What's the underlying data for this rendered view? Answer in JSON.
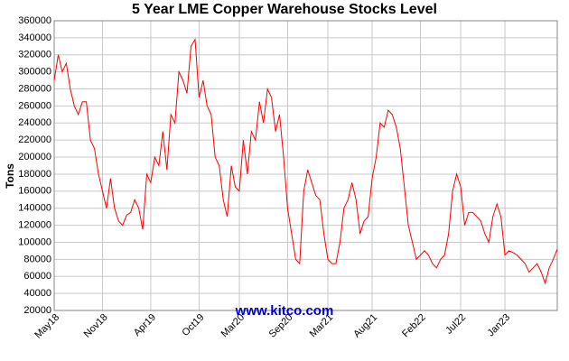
{
  "chart_data": {
    "type": "line",
    "title": "5 Year LME Copper Warehouse Stocks Level",
    "y_label": "Tons",
    "annotation": "www.kitco.com",
    "color": "#ff0000",
    "grid": true,
    "ylim": [
      20000,
      360000
    ],
    "yticks": [
      20000,
      40000,
      60000,
      80000,
      100000,
      120000,
      140000,
      160000,
      180000,
      200000,
      220000,
      240000,
      260000,
      280000,
      300000,
      320000,
      340000,
      360000
    ],
    "categories": [
      "May18",
      null,
      null,
      null,
      null,
      null,
      null,
      null,
      null,
      null,
      null,
      null,
      "Nov18",
      null,
      null,
      null,
      null,
      null,
      null,
      null,
      null,
      null,
      null,
      null,
      "Apr19",
      null,
      null,
      null,
      null,
      null,
      null,
      null,
      null,
      null,
      null,
      null,
      "Oct19",
      null,
      null,
      null,
      null,
      null,
      null,
      null,
      null,
      null,
      "Mar20",
      null,
      null,
      null,
      null,
      null,
      null,
      null,
      null,
      null,
      null,
      null,
      "Sep20",
      null,
      null,
      null,
      null,
      null,
      null,
      null,
      null,
      null,
      "Mar21",
      null,
      null,
      null,
      null,
      null,
      null,
      null,
      null,
      null,
      null,
      "Aug21",
      null,
      null,
      null,
      null,
      null,
      null,
      null,
      null,
      null,
      null,
      null,
      "Feb22",
      null,
      null,
      null,
      null,
      null,
      null,
      null,
      null,
      null,
      "Jul22",
      null,
      null,
      null,
      null,
      null,
      null,
      null,
      null,
      null,
      null,
      "Jan23",
      null,
      null,
      null,
      null,
      null,
      null,
      null,
      null,
      null,
      null,
      null,
      null,
      null
    ],
    "values": [
      290000,
      320000,
      300000,
      310000,
      280000,
      260000,
      250000,
      265000,
      265000,
      220000,
      210000,
      180000,
      160000,
      140000,
      175000,
      140000,
      125000,
      120000,
      132000,
      135000,
      150000,
      140000,
      115000,
      180000,
      170000,
      200000,
      190000,
      230000,
      185000,
      250000,
      240000,
      300000,
      290000,
      275000,
      330000,
      338000,
      270000,
      290000,
      260000,
      250000,
      200000,
      190000,
      150000,
      130000,
      190000,
      165000,
      160000,
      220000,
      180000,
      230000,
      220000,
      265000,
      240000,
      280000,
      270000,
      230000,
      250000,
      200000,
      140000,
      110000,
      80000,
      75000,
      160000,
      185000,
      170000,
      155000,
      150000,
      110000,
      80000,
      75000,
      75000,
      100000,
      140000,
      150000,
      170000,
      150000,
      110000,
      125000,
      130000,
      175000,
      200000,
      240000,
      235000,
      255000,
      250000,
      235000,
      210000,
      165000,
      120000,
      100000,
      80000,
      85000,
      90000,
      85000,
      75000,
      70000,
      80000,
      85000,
      110000,
      160000,
      180000,
      165000,
      120000,
      135000,
      135000,
      130000,
      125000,
      110000,
      100000,
      130000,
      145000,
      130000,
      85000,
      90000,
      88000,
      85000,
      80000,
      75000,
      65000,
      70000,
      75000,
      65000,
      52000,
      70000,
      80000,
      92000
    ]
  }
}
